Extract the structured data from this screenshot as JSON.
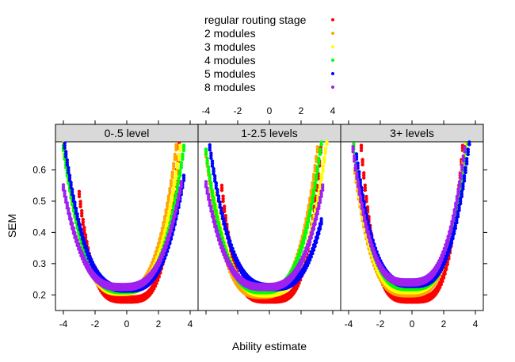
{
  "chart_data": {
    "type": "scatter",
    "xlabel": "Ability estimate",
    "ylabel": "SEM",
    "xlim": [
      -4.5,
      4.5
    ],
    "ylim": [
      0.15,
      0.69
    ],
    "x_ticks": [
      -4,
      -2,
      0,
      2,
      4
    ],
    "y_ticks": [
      0.2,
      0.3,
      0.4,
      0.5,
      0.6
    ],
    "x_tick_labels": [
      "-4",
      "-2",
      "0",
      "2",
      "4"
    ],
    "y_tick_labels": [
      "0.2",
      "0.3",
      "0.4",
      "0.5",
      "0.6"
    ],
    "grid": false,
    "legend": {
      "placement": "top",
      "entries": [
        {
          "label": "regular routing stage",
          "color": "#ff0000"
        },
        {
          "label": "2 modules",
          "color": "#ffa500"
        },
        {
          "label": "3 modules",
          "color": "#ffff00"
        },
        {
          "label": "4 modules",
          "color": "#00ff00"
        },
        {
          "label": "5 modules",
          "color": "#0000ff"
        },
        {
          "label": "8 modules",
          "color": "#a020f0"
        }
      ]
    },
    "panels": [
      {
        "strip": "0-.5 level",
        "series": [
          {
            "name": "regular routing stage",
            "color": "#ff0000",
            "a": 0.185,
            "c": 0.0,
            "k": 0.0058,
            "p": 3.7,
            "xmin": -3.0,
            "xmax": 4.0
          },
          {
            "name": "2 modules",
            "color": "#ffa500",
            "a": 0.21,
            "c": -0.4,
            "k": 0.0106,
            "p": 3.0,
            "xmin": -4.0,
            "xmax": 4.0
          },
          {
            "name": "3 modules",
            "color": "#ffff00",
            "a": 0.21,
            "c": -0.3,
            "k": 0.0094,
            "p": 3.0,
            "xmin": -4.0,
            "xmax": 3.8
          },
          {
            "name": "4 modules",
            "color": "#00ff00",
            "a": 0.215,
            "c": -0.2,
            "k": 0.0083,
            "p": 3.0,
            "xmin": -4.0,
            "xmax": 3.7
          },
          {
            "name": "5 modules",
            "color": "#0000ff",
            "a": 0.22,
            "c": 0.0,
            "k": 0.0076,
            "p": 3.0,
            "xmin": -4.0,
            "xmax": 3.6
          },
          {
            "name": "8 modules",
            "color": "#a020f0",
            "a": 0.225,
            "c": -0.3,
            "k": 0.0063,
            "p": 3.0,
            "xmin": -4.0,
            "xmax": 3.5
          }
        ]
      },
      {
        "strip": "1-2.5 levels",
        "series": [
          {
            "name": "regular routing stage",
            "color": "#ff0000",
            "a": 0.185,
            "c": 0.0,
            "k": 0.0055,
            "p": 3.8,
            "xmin": -3.0,
            "xmax": 4.0
          },
          {
            "name": "2 modules",
            "color": "#ffa500",
            "a": 0.2,
            "c": -0.5,
            "k": 0.0105,
            "p": 3.0,
            "xmin": -4.0,
            "xmax": 4.0
          },
          {
            "name": "3 modules",
            "color": "#ffff00",
            "a": 0.205,
            "c": -0.2,
            "k": 0.0087,
            "p": 3.0,
            "xmin": -3.5,
            "xmax": 3.9
          },
          {
            "name": "4 modules",
            "color": "#00ff00",
            "a": 0.215,
            "c": -0.4,
            "k": 0.0095,
            "p": 3.0,
            "xmin": -4.0,
            "xmax": 3.3
          },
          {
            "name": "5 modules",
            "color": "#0000ff",
            "a": 0.225,
            "c": 0.2,
            "k": 0.0072,
            "p": 3.0,
            "xmin": -4.0,
            "xmax": 3.3
          },
          {
            "name": "8 modules",
            "color": "#a020f0",
            "a": 0.225,
            "c": -0.3,
            "k": 0.0065,
            "p": 3.0,
            "xmin": -4.0,
            "xmax": 3.4
          }
        ]
      },
      {
        "strip": "3+ levels",
        "series": [
          {
            "name": "regular routing stage",
            "color": "#ff0000",
            "a": 0.185,
            "c": 0.0,
            "k": 0.0052,
            "p": 3.9,
            "xmin": -3.2,
            "xmax": 4.0
          },
          {
            "name": "2 modules",
            "color": "#ffa500",
            "a": 0.205,
            "c": -0.2,
            "k": 0.0078,
            "p": 3.2,
            "xmin": -3.6,
            "xmax": 4.0
          },
          {
            "name": "3 modules",
            "color": "#ffff00",
            "a": 0.215,
            "c": -0.2,
            "k": 0.0079,
            "p": 3.2,
            "xmin": -3.5,
            "xmax": 3.8
          },
          {
            "name": "4 modules",
            "color": "#00ff00",
            "a": 0.225,
            "c": -0.1,
            "k": 0.0076,
            "p": 3.2,
            "xmin": -4.0,
            "xmax": 4.0
          },
          {
            "name": "5 modules",
            "color": "#0000ff",
            "a": 0.235,
            "c": 0.0,
            "k": 0.0074,
            "p": 3.2,
            "xmin": -3.5,
            "xmax": 4.0
          },
          {
            "name": "8 modules",
            "color": "#a020f0",
            "a": 0.24,
            "c": -0.2,
            "k": 0.0076,
            "p": 3.2,
            "xmin": -3.8,
            "xmax": 3.9
          }
        ]
      }
    ]
  }
}
